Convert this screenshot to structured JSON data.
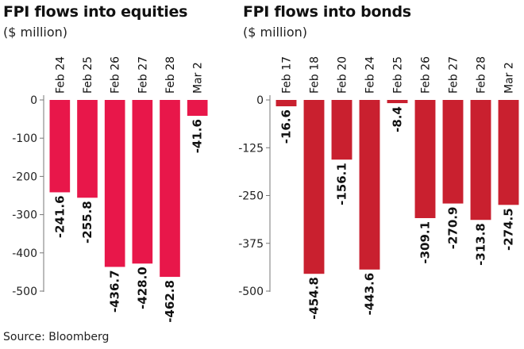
{
  "source": "Source: Bloomberg",
  "colors": {
    "equities": "#e8174a",
    "bonds": "#c9202f",
    "axis": "#777777",
    "text": "#111111"
  },
  "chart_data": [
    {
      "type": "bar",
      "title": "FPI flows into equities",
      "subtitle": "($ million)",
      "categories": [
        "Feb 24",
        "Feb 25",
        "Feb 26",
        "Feb 27",
        "Feb 28",
        "Mar 2"
      ],
      "values": [
        -241.6,
        -255.8,
        -436.7,
        -428.0,
        -462.8,
        -41.6
      ],
      "value_labels": [
        "-241.6",
        "-255.8",
        "-436.7",
        "-428.0",
        "-462.8",
        "-41.6"
      ],
      "yticks": [
        0,
        -100,
        -200,
        -300,
        -400,
        -500
      ],
      "ylim": [
        -500,
        0
      ],
      "xlabel": "",
      "ylabel": "",
      "grid": false,
      "legend": "none"
    },
    {
      "type": "bar",
      "title": "FPI flows into bonds",
      "subtitle": "($ million)",
      "categories": [
        "Feb 17",
        "Feb 18",
        "Feb 20",
        "Feb 24",
        "Feb 25",
        "Feb 26",
        "Feb 27",
        "Feb 28",
        "Mar 2"
      ],
      "values": [
        -16.6,
        -454.8,
        -156.1,
        -443.6,
        -8.4,
        -309.1,
        -270.9,
        -313.8,
        -274.5
      ],
      "value_labels": [
        "-16.6",
        "-454.8",
        "-156.1",
        "-443.6",
        "-8.4",
        "-309.1",
        "-270.9",
        "-313.8",
        "-274.5"
      ],
      "yticks": [
        0,
        -125,
        -250,
        -375,
        -500
      ],
      "ylim": [
        -500,
        0
      ],
      "xlabel": "",
      "ylabel": "",
      "grid": false,
      "legend": "none"
    }
  ]
}
